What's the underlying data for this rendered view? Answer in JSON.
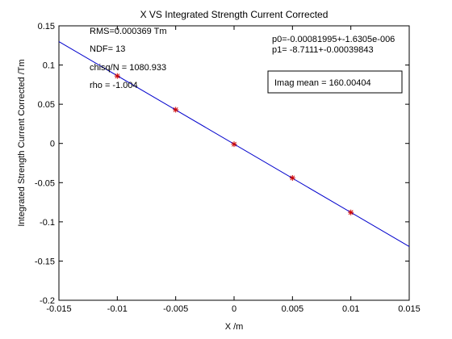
{
  "chart_data": {
    "type": "scatter",
    "title": "X VS Integrated Strength Current Corrected",
    "xlabel": "X /m",
    "ylabel": "Integrated Strength Current Corrected /Tm",
    "xlim": [
      -0.015,
      0.015
    ],
    "ylim": [
      -0.2,
      0.15
    ],
    "xticks": [
      "-0.015",
      "-0.01",
      "-0.005",
      "0",
      "0.005",
      "0.01",
      "0.015"
    ],
    "yticks": [
      "0.15",
      "0.1",
      "0.05",
      "0",
      "-0.05",
      "-0.1",
      "-0.15",
      "-0.2"
    ],
    "grid": false,
    "series": [
      {
        "kind": "points",
        "marker": "asterisk",
        "color": "#cc0000",
        "x": [
          -0.01,
          -0.005,
          0,
          0.005,
          0.01
        ],
        "y": [
          0.086,
          0.043,
          -0.001,
          -0.044,
          -0.088
        ]
      },
      {
        "kind": "fit-line",
        "color": "#0000cc",
        "x": [
          -0.015,
          0.015
        ],
        "y": [
          0.1299,
          -0.1315
        ]
      }
    ],
    "annotations": {
      "rms": "RMS=0.000369 Tm",
      "ndf": "NDF=   13",
      "chisq": "chisq/N = 1080.933",
      "rho": "rho     = -1.004",
      "p0": "p0=-0.00081995+-1.6305e-006",
      "p1": "p1=  -8.7111+-0.00039843",
      "imag_mean": "Imag mean =  160.00404"
    }
  }
}
